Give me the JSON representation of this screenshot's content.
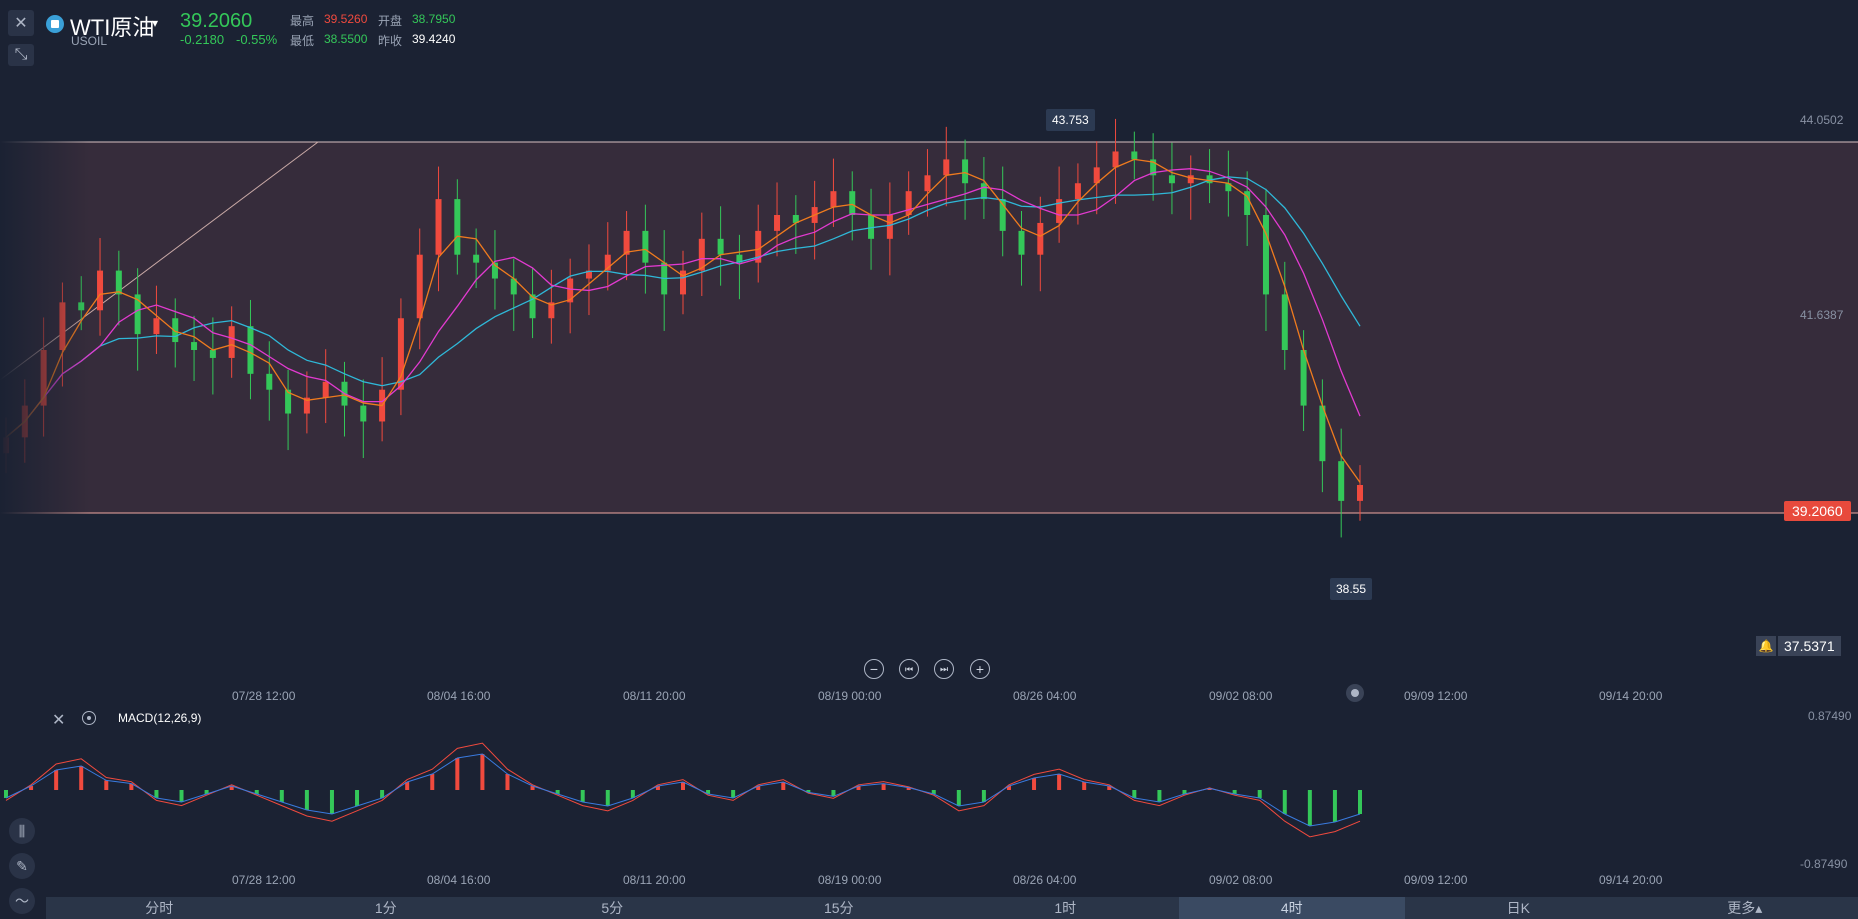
{
  "header": {
    "symbol_name": "WTI原油",
    "symbol_code": "USOIL",
    "last_price": "39.2060",
    "change": "-0.2180",
    "change_pct": "-0.55%",
    "high_label": "最高",
    "high_value": "39.5260",
    "open_label": "开盘",
    "open_value": "38.7950",
    "low_label": "最低",
    "low_value": "38.5500",
    "prev_close_label": "昨收",
    "prev_close_value": "39.4240"
  },
  "main_chart": {
    "y_axis_labels": [
      "44.0502",
      "41.6387",
      "37.5371"
    ],
    "current_price_tag": "39.2060",
    "high_callout": "43.753",
    "low_callout": "38.55",
    "x_labels": [
      "07/28 12:00",
      "08/04 16:00",
      "08/11 20:00",
      "08/19 00:00",
      "08/26 04:00",
      "09/02 08:00",
      "09/09 12:00",
      "09/14 20:00"
    ]
  },
  "macd": {
    "title": "MACD(12,26,9)",
    "y_top": "0.87490",
    "y_bottom": "-0.87490"
  },
  "tabs": [
    "分时",
    "1分",
    "5分",
    "15分",
    "1时",
    "4时",
    "日K",
    "更多▴"
  ],
  "active_tab": "4时",
  "colors": {
    "up": "#f04a3e",
    "down": "#34c759",
    "ma_fast": "#f07b1e",
    "ma_mid": "#e23ad0",
    "ma_slow": "#2fb8d8",
    "band": "#3a2d3c",
    "accent_tag": "#e84a3c"
  },
  "chart_data": [
    {
      "type": "candlestick",
      "title": "WTI原油",
      "ylim": [
        37.5,
        44.3
      ],
      "x_ticks": [
        "07/28 12:00",
        "08/04 16:00",
        "08/11 20:00",
        "08/19 00:00",
        "08/26 04:00",
        "09/02 08:00",
        "09/09 12:00",
        "09/14 20:00"
      ],
      "horizontal_lines": [
        43.753,
        39.206
      ],
      "trend_line": [
        [
          0,
          40.0
        ],
        [
          50,
          44.05
        ]
      ],
      "series_close": [
        39.8,
        40.2,
        40.9,
        41.5,
        41.4,
        41.9,
        41.6,
        41.1,
        41.3,
        41.0,
        40.9,
        40.8,
        41.2,
        40.6,
        40.4,
        40.1,
        40.3,
        40.5,
        40.2,
        40.0,
        40.4,
        41.3,
        42.1,
        42.8,
        42.1,
        42.0,
        41.8,
        41.6,
        41.3,
        41.5,
        41.8,
        41.9,
        42.1,
        42.4,
        42.0,
        41.6,
        41.9,
        42.3,
        42.1,
        42.0,
        42.4,
        42.6,
        42.5,
        42.7,
        42.9,
        42.6,
        42.3,
        42.6,
        42.9,
        43.1,
        43.3,
        43.0,
        42.8,
        42.4,
        42.1,
        42.5,
        42.8,
        43.0,
        43.2,
        43.4,
        43.3,
        43.1,
        43.0,
        43.1,
        43.0,
        42.9,
        42.6,
        41.6,
        40.9,
        40.2,
        39.5,
        39.0,
        39.2
      ],
      "high_marker": 43.753,
      "low_marker": 38.55
    },
    {
      "type": "bar",
      "title": "MACD(12,26,9)",
      "ylim": [
        -0.8749,
        0.8749
      ],
      "values": [
        -0.1,
        0.05,
        0.25,
        0.3,
        0.12,
        0.08,
        -0.1,
        -0.15,
        -0.05,
        0.05,
        -0.05,
        -0.15,
        -0.25,
        -0.3,
        -0.2,
        -0.1,
        0.1,
        0.2,
        0.4,
        0.45,
        0.2,
        0.05,
        -0.05,
        -0.15,
        -0.2,
        -0.1,
        0.05,
        0.1,
        -0.05,
        -0.1,
        0.05,
        0.1,
        -0.03,
        -0.08,
        0.05,
        0.08,
        0.03,
        -0.05,
        -0.2,
        -0.15,
        0.05,
        0.15,
        0.2,
        0.1,
        0.05,
        -0.1,
        -0.15,
        -0.05,
        0.02,
        -0.05,
        -0.1,
        -0.3,
        -0.45,
        -0.4,
        -0.3
      ]
    }
  ]
}
